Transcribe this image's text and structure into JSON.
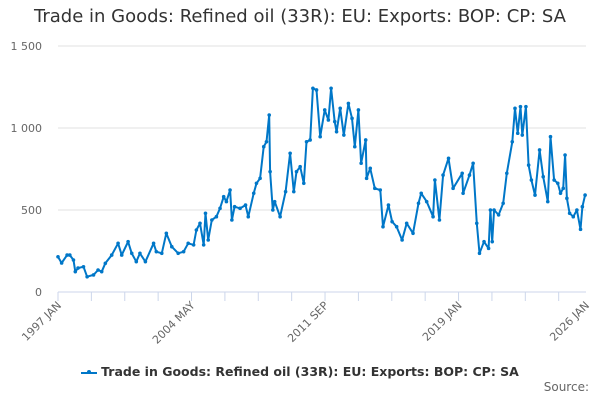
{
  "chart_data": {
    "type": "line",
    "title": "Trade in Goods: Refined oil (33R): EU: Exports: BOP: CP: SA",
    "xlabel": "",
    "ylabel": "",
    "ylim": [
      0,
      1500
    ],
    "xlim": [
      1997.0,
      2026.0
    ],
    "yticks": [
      0,
      500,
      1000,
      1500
    ],
    "ytick_labels": [
      "0",
      "500",
      "1 000",
      "1 500"
    ],
    "xtick_labels": [
      {
        "label": "1997 JAN",
        "x": 1997.0
      },
      {
        "label": "2004 MAY",
        "x": 2004.333
      },
      {
        "label": "2011 SEP",
        "x": 2011.667
      },
      {
        "label": "2019 JAN",
        "x": 2019.0
      },
      {
        "label": "2026 JAN",
        "x": 2026.0
      }
    ],
    "grid": true,
    "legend_position": "bottom",
    "series": [
      {
        "name": "Trade in Goods: Refined oil (33R): EU: Exports: BOP: CP: SA",
        "color": "#0077c8",
        "x": [
          1997.0,
          1997.2,
          1997.5,
          1997.65,
          1997.85,
          1997.95,
          1998.1,
          1998.4,
          1998.6,
          1998.95,
          1999.2,
          1999.4,
          1999.6,
          1999.95,
          2000.3,
          2000.5,
          2000.85,
          2001.05,
          2001.3,
          2001.5,
          2001.8,
          2002.25,
          2002.4,
          2002.7,
          2002.95,
          2003.25,
          2003.6,
          2003.9,
          2004.15,
          2004.45,
          2004.6,
          2004.8,
          2005.0,
          2005.1,
          2005.25,
          2005.45,
          2005.7,
          2005.9,
          2006.1,
          2006.25,
          2006.45,
          2006.55,
          2006.7,
          2007.0,
          2007.3,
          2007.45,
          2007.75,
          2007.9,
          2008.1,
          2008.3,
          2008.45,
          2008.6,
          2008.65,
          2008.8,
          2008.9,
          2009.2,
          2009.5,
          2009.75,
          2009.95,
          2010.1,
          2010.3,
          2010.5,
          2010.65,
          2010.85,
          2011.0,
          2011.2,
          2011.4,
          2011.65,
          2011.85,
          2012.0,
          2012.2,
          2012.3,
          2012.5,
          2012.7,
          2012.95,
          2013.15,
          2013.3,
          2013.5,
          2013.65,
          2013.9,
          2013.95,
          2014.15,
          2014.4,
          2014.7,
          2014.85,
          2015.15,
          2015.35,
          2015.6,
          2015.9,
          2016.15,
          2016.5,
          2016.8,
          2016.95,
          2017.25,
          2017.6,
          2017.7,
          2017.95,
          2018.15,
          2018.45,
          2018.7,
          2019.2,
          2019.25,
          2019.6,
          2019.8,
          2020.0,
          2020.15,
          2020.4,
          2020.65,
          2020.75,
          2020.85,
          2020.95,
          2021.2,
          2021.45,
          2021.65,
          2021.95,
          2022.1,
          2022.25,
          2022.4,
          2022.5,
          2022.7,
          2022.85,
          2023.0,
          2023.2,
          2023.45,
          2023.65,
          2023.9,
          2024.05,
          2024.25,
          2024.45,
          2024.6,
          2024.75,
          2024.85,
          2024.95,
          2025.1,
          2025.3,
          2025.5,
          2025.7,
          2025.8,
          2025.95
        ],
        "values": [
          215,
          177,
          225,
          225,
          195,
          124,
          146,
          154,
          93,
          104,
          134,
          124,
          175,
          225,
          297,
          225,
          307,
          236,
          185,
          236,
          185,
          297,
          246,
          236,
          358,
          276,
          236,
          246,
          297,
          287,
          378,
          419,
          287,
          480,
          317,
          439,
          459,
          510,
          581,
          551,
          622,
          439,
          520,
          510,
          530,
          459,
          602,
          663,
          693,
          886,
          916,
          1079,
          734,
          500,
          551,
          459,
          612,
          846,
          612,
          734,
          764,
          663,
          916,
          927,
          1242,
          1232,
          947,
          1110,
          1049,
          1242,
          1039,
          977,
          1120,
          957,
          1150,
          1059,
          886,
          1110,
          785,
          927,
          693,
          754,
          632,
          622,
          398,
          530,
          429,
          398,
          317,
          419,
          358,
          541,
          602,
          551,
          459,
          683,
          439,
          713,
          815,
          632,
          724,
          602,
          713,
          785,
          419,
          236,
          307,
          266,
          500,
          307,
          500,
          470,
          541,
          724,
          916,
          1120,
          968,
          1130,
          957,
          1130,
          774,
          683,
          591,
          866,
          703,
          551,
          947,
          683,
          663,
          602,
          632,
          835,
          571,
          480,
          459,
          500,
          382,
          520,
          591
        ]
      }
    ]
  },
  "source_label": "Source:"
}
